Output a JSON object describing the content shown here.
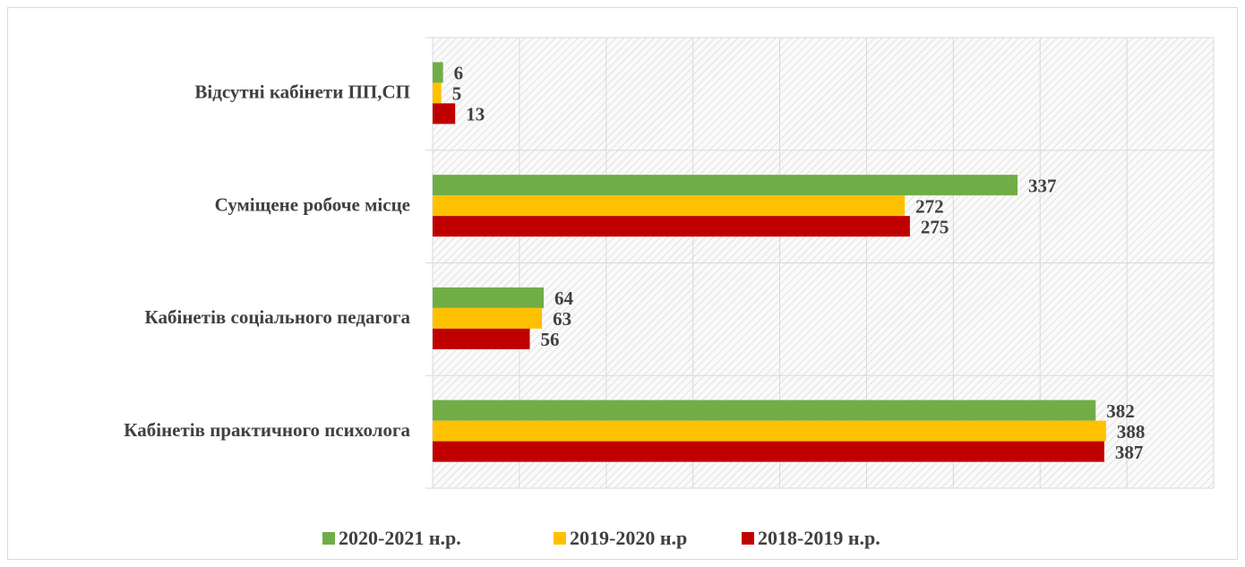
{
  "chart_data": {
    "type": "barh",
    "categories": [
      "Відсутні кабінети ПП,СП",
      "Суміщене робоче місце",
      "Кабінетів соціального педагога",
      "Кабінетів практичного психолога"
    ],
    "series": [
      {
        "name": "2020-2021 н.р.",
        "color": "#70ad47",
        "values": [
          6,
          337,
          64,
          382
        ]
      },
      {
        "name": "2019-2020 н.р",
        "color": "#ffc000",
        "values": [
          5,
          272,
          63,
          388
        ]
      },
      {
        "name": "2018-2019 н.р.",
        "color": "#c00000",
        "values": [
          13,
          275,
          56,
          387
        ]
      }
    ],
    "xlim": [
      0,
      450
    ],
    "xticks": [
      0,
      50,
      100,
      150,
      200,
      250,
      300,
      350,
      400,
      450
    ],
    "grid": true,
    "legend": "bottom"
  }
}
